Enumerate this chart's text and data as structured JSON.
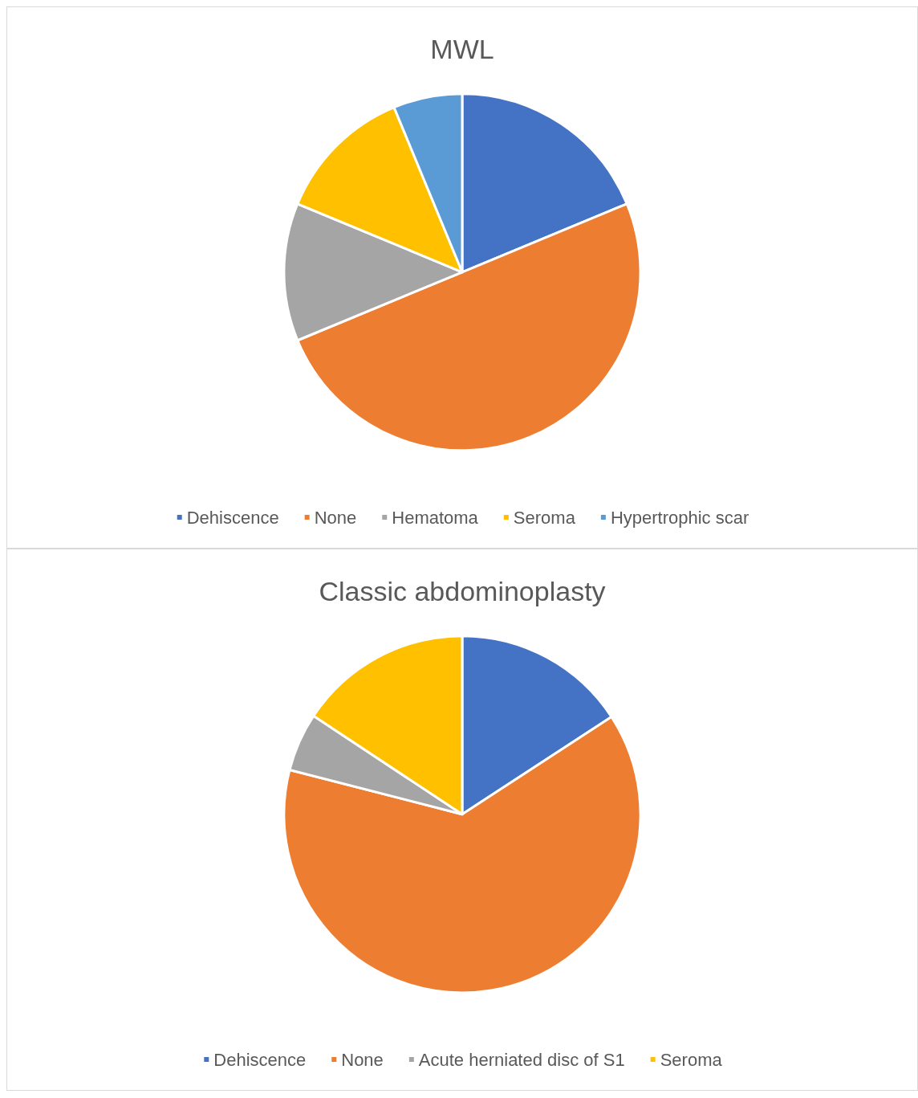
{
  "chart_data": [
    {
      "type": "pie",
      "title": "MWL",
      "categories": [
        "Dehiscence",
        "None",
        "Hematoma",
        "Seroma",
        "Hypertrophic scar"
      ],
      "values": [
        18.75,
        50,
        12.5,
        12.5,
        6.25
      ],
      "colors": [
        "#4472c4",
        "#ed7d31",
        "#a5a5a5",
        "#ffc000",
        "#5b9bd5"
      ],
      "legend": "bottom"
    },
    {
      "type": "pie",
      "title": "Classic abdominoplasty",
      "categories": [
        "Dehiscence",
        "None",
        "Acute herniated disc of S1",
        "Seroma"
      ],
      "values": [
        15.8,
        63.2,
        5.3,
        15.7
      ],
      "colors": [
        "#4472c4",
        "#ed7d31",
        "#a5a5a5",
        "#ffc000"
      ],
      "legend": "bottom"
    }
  ]
}
